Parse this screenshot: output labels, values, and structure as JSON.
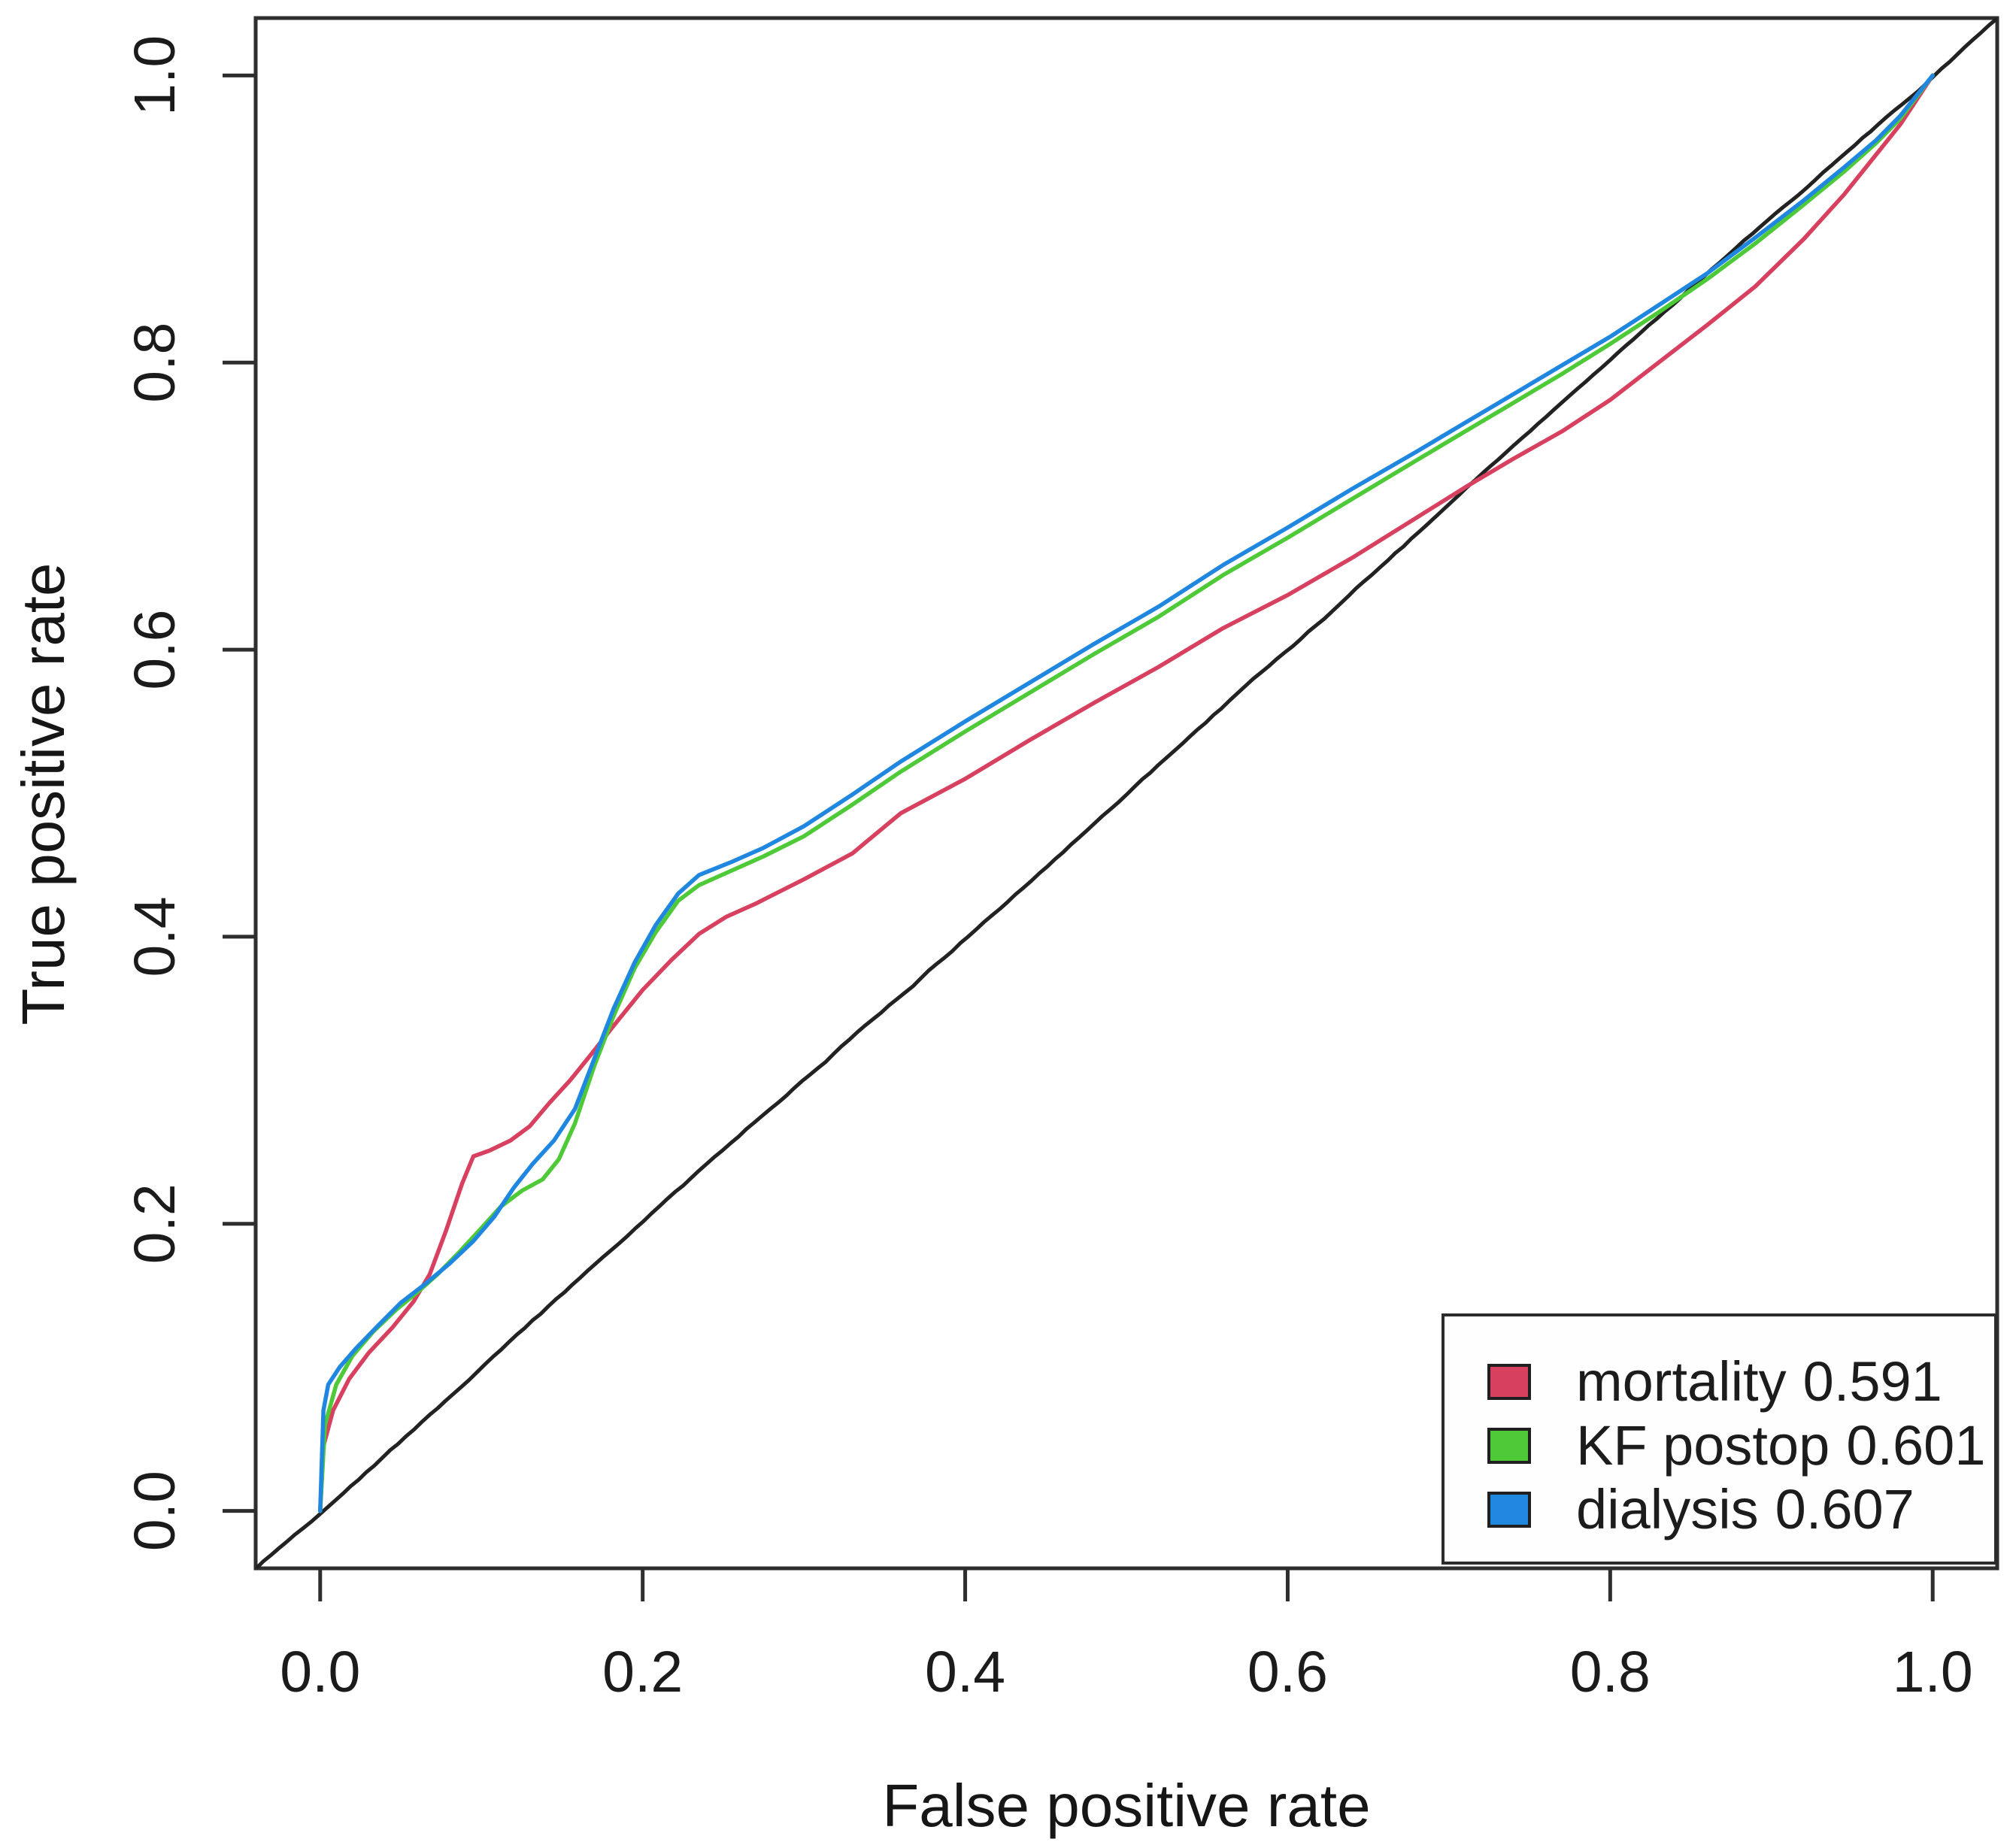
{
  "chart_data": {
    "type": "line",
    "title": "",
    "xlabel": "False positive rate",
    "ylabel": "True positive rate",
    "xlim": [
      0,
      1
    ],
    "ylim": [
      0,
      1
    ],
    "axis_padding": 0.04,
    "grid": false,
    "legend_position": "bottom-right",
    "x_ticks": [
      "0.0",
      "0.2",
      "0.4",
      "0.6",
      "0.8",
      "1.0"
    ],
    "y_ticks": [
      "0.0",
      "0.2",
      "0.4",
      "0.6",
      "0.8",
      "1.0"
    ],
    "series": [
      {
        "name": "chance-diagonal",
        "color": "#222222",
        "role": "reference",
        "points": [
          [
            0,
            0
          ],
          [
            1,
            1
          ]
        ]
      },
      {
        "name": "mortality",
        "auc": 0.591,
        "color": "#d84060",
        "points": [
          [
            0,
            0
          ],
          [
            0.002,
            0.045
          ],
          [
            0.008,
            0.07
          ],
          [
            0.018,
            0.092
          ],
          [
            0.03,
            0.11
          ],
          [
            0.045,
            0.128
          ],
          [
            0.058,
            0.146
          ],
          [
            0.068,
            0.165
          ],
          [
            0.078,
            0.195
          ],
          [
            0.088,
            0.228
          ],
          [
            0.095,
            0.247
          ],
          [
            0.105,
            0.251
          ],
          [
            0.118,
            0.258
          ],
          [
            0.13,
            0.268
          ],
          [
            0.142,
            0.284
          ],
          [
            0.155,
            0.3
          ],
          [
            0.168,
            0.318
          ],
          [
            0.182,
            0.338
          ],
          [
            0.2,
            0.363
          ],
          [
            0.218,
            0.384
          ],
          [
            0.235,
            0.402
          ],
          [
            0.252,
            0.414
          ],
          [
            0.27,
            0.423
          ],
          [
            0.3,
            0.44
          ],
          [
            0.33,
            0.458
          ],
          [
            0.36,
            0.486
          ],
          [
            0.4,
            0.51
          ],
          [
            0.44,
            0.537
          ],
          [
            0.48,
            0.563
          ],
          [
            0.52,
            0.588
          ],
          [
            0.56,
            0.615
          ],
          [
            0.6,
            0.638
          ],
          [
            0.64,
            0.664
          ],
          [
            0.68,
            0.692
          ],
          [
            0.71,
            0.713
          ],
          [
            0.74,
            0.733
          ],
          [
            0.77,
            0.752
          ],
          [
            0.8,
            0.774
          ],
          [
            0.83,
            0.8
          ],
          [
            0.86,
            0.826
          ],
          [
            0.89,
            0.853
          ],
          [
            0.92,
            0.886
          ],
          [
            0.945,
            0.917
          ],
          [
            0.965,
            0.945
          ],
          [
            0.98,
            0.966
          ],
          [
            1,
            1
          ]
        ]
      },
      {
        "name": "KF postop",
        "auc": 0.601,
        "color": "#4ec937",
        "points": [
          [
            0,
            0
          ],
          [
            0.003,
            0.06
          ],
          [
            0.01,
            0.088
          ],
          [
            0.02,
            0.108
          ],
          [
            0.033,
            0.125
          ],
          [
            0.047,
            0.14
          ],
          [
            0.06,
            0.152
          ],
          [
            0.073,
            0.165
          ],
          [
            0.086,
            0.18
          ],
          [
            0.1,
            0.197
          ],
          [
            0.112,
            0.212
          ],
          [
            0.125,
            0.223
          ],
          [
            0.138,
            0.231
          ],
          [
            0.148,
            0.245
          ],
          [
            0.158,
            0.27
          ],
          [
            0.17,
            0.31
          ],
          [
            0.182,
            0.345
          ],
          [
            0.195,
            0.378
          ],
          [
            0.208,
            0.403
          ],
          [
            0.222,
            0.425
          ],
          [
            0.235,
            0.436
          ],
          [
            0.255,
            0.446
          ],
          [
            0.275,
            0.456
          ],
          [
            0.3,
            0.47
          ],
          [
            0.33,
            0.492
          ],
          [
            0.36,
            0.515
          ],
          [
            0.4,
            0.543
          ],
          [
            0.44,
            0.57
          ],
          [
            0.48,
            0.597
          ],
          [
            0.52,
            0.623
          ],
          [
            0.56,
            0.652
          ],
          [
            0.6,
            0.678
          ],
          [
            0.64,
            0.705
          ],
          [
            0.68,
            0.732
          ],
          [
            0.71,
            0.752
          ],
          [
            0.74,
            0.772
          ],
          [
            0.77,
            0.792
          ],
          [
            0.8,
            0.813
          ],
          [
            0.83,
            0.835
          ],
          [
            0.86,
            0.858
          ],
          [
            0.89,
            0.883
          ],
          [
            0.92,
            0.91
          ],
          [
            0.945,
            0.933
          ],
          [
            0.965,
            0.953
          ],
          [
            0.98,
            0.97
          ],
          [
            1,
            1
          ]
        ]
      },
      {
        "name": "dialysis",
        "auc": 0.607,
        "color": "#1f87e0",
        "points": [
          [
            0,
            0
          ],
          [
            0.002,
            0.07
          ],
          [
            0.005,
            0.088
          ],
          [
            0.012,
            0.1
          ],
          [
            0.022,
            0.113
          ],
          [
            0.035,
            0.128
          ],
          [
            0.05,
            0.145
          ],
          [
            0.065,
            0.158
          ],
          [
            0.08,
            0.172
          ],
          [
            0.095,
            0.188
          ],
          [
            0.108,
            0.205
          ],
          [
            0.12,
            0.225
          ],
          [
            0.132,
            0.242
          ],
          [
            0.145,
            0.258
          ],
          [
            0.158,
            0.28
          ],
          [
            0.17,
            0.315
          ],
          [
            0.182,
            0.35
          ],
          [
            0.195,
            0.382
          ],
          [
            0.208,
            0.408
          ],
          [
            0.222,
            0.43
          ],
          [
            0.235,
            0.443
          ],
          [
            0.255,
            0.452
          ],
          [
            0.275,
            0.462
          ],
          [
            0.3,
            0.477
          ],
          [
            0.33,
            0.499
          ],
          [
            0.36,
            0.522
          ],
          [
            0.4,
            0.55
          ],
          [
            0.44,
            0.577
          ],
          [
            0.48,
            0.604
          ],
          [
            0.52,
            0.63
          ],
          [
            0.56,
            0.659
          ],
          [
            0.6,
            0.685
          ],
          [
            0.64,
            0.712
          ],
          [
            0.68,
            0.738
          ],
          [
            0.71,
            0.758
          ],
          [
            0.74,
            0.778
          ],
          [
            0.77,
            0.798
          ],
          [
            0.8,
            0.818
          ],
          [
            0.83,
            0.84
          ],
          [
            0.86,
            0.862
          ],
          [
            0.89,
            0.887
          ],
          [
            0.92,
            0.913
          ],
          [
            0.945,
            0.936
          ],
          [
            0.965,
            0.955
          ],
          [
            0.98,
            0.972
          ],
          [
            1,
            1
          ]
        ]
      }
    ]
  },
  "legend": {
    "items": [
      {
        "label": "mortality",
        "auc": "0.591",
        "color": "#d84060"
      },
      {
        "label": "KF postop",
        "auc": "0.601",
        "color": "#4ec937"
      },
      {
        "label": "dialysis",
        "auc": "0.607",
        "color": "#1f87e0"
      }
    ]
  },
  "colors": {
    "plot_border": "#2e2e2e",
    "tick": "#2e2e2e",
    "text": "#1b1b1b",
    "reference_line": "#222222",
    "background": "#ffffff"
  }
}
